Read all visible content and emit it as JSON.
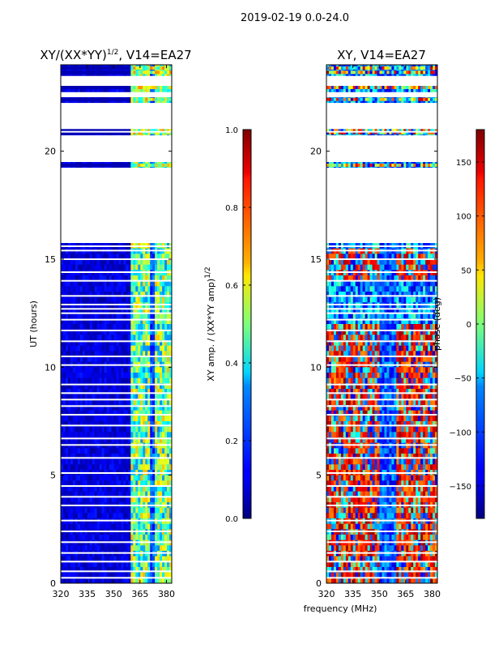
{
  "suptitle": "2019-02-19 0.0-24.0",
  "chart_data": [
    {
      "type": "heatmap",
      "title_main": "XY/(XX*YY)",
      "title_sup": "1/2",
      "title_rest": ", V14=EA27",
      "xlabel": "",
      "ylabel": "UT (hours)",
      "xlim": [
        320,
        383
      ],
      "ylim": [
        0,
        24
      ],
      "xticks": [
        320,
        335,
        350,
        365,
        380
      ],
      "yticks": [
        0,
        5,
        10,
        15,
        20
      ],
      "colorbar": {
        "label_main": "XY amp. / (XX*YY amp)",
        "label_sup": "1/2",
        "range": [
          0.0,
          1.0
        ],
        "ticks": [
          "0.0",
          "0.2",
          "0.4",
          "0.6",
          "0.8",
          "1.0"
        ],
        "tick_values": [
          0.0,
          0.2,
          0.4,
          0.6,
          0.8,
          1.0
        ]
      },
      "description_bands_mhz": [
        [
          360,
          383
        ]
      ],
      "flagged_hours_ranges": [
        [
          15.8,
          19.3
        ],
        [
          19.4,
          20.75
        ],
        [
          21.0,
          22.3
        ],
        [
          22.5,
          22.85
        ],
        [
          23.0,
          23.6
        ]
      ]
    },
    {
      "type": "heatmap",
      "title_main": "XY, V14=EA27",
      "xlabel": "frequency (MHz)",
      "ylabel": "",
      "xlim": [
        320,
        383
      ],
      "ylim": [
        0,
        24
      ],
      "xticks": [
        320,
        335,
        350,
        365,
        380
      ],
      "yticks": [
        0,
        5,
        10,
        15,
        20
      ],
      "colorbar": {
        "label_main": "phase (deg)",
        "range": [
          -180,
          180
        ],
        "ticks": [
          "−150",
          "−100",
          "−50",
          "0",
          "50",
          "100",
          "150"
        ],
        "tick_values": [
          -150,
          -100,
          -50,
          0,
          50,
          100,
          150
        ]
      },
      "flagged_hours_ranges": [
        [
          15.8,
          19.3
        ],
        [
          19.4,
          20.75
        ],
        [
          21.0,
          22.3
        ],
        [
          22.5,
          22.85
        ],
        [
          23.0,
          23.6
        ]
      ]
    }
  ]
}
